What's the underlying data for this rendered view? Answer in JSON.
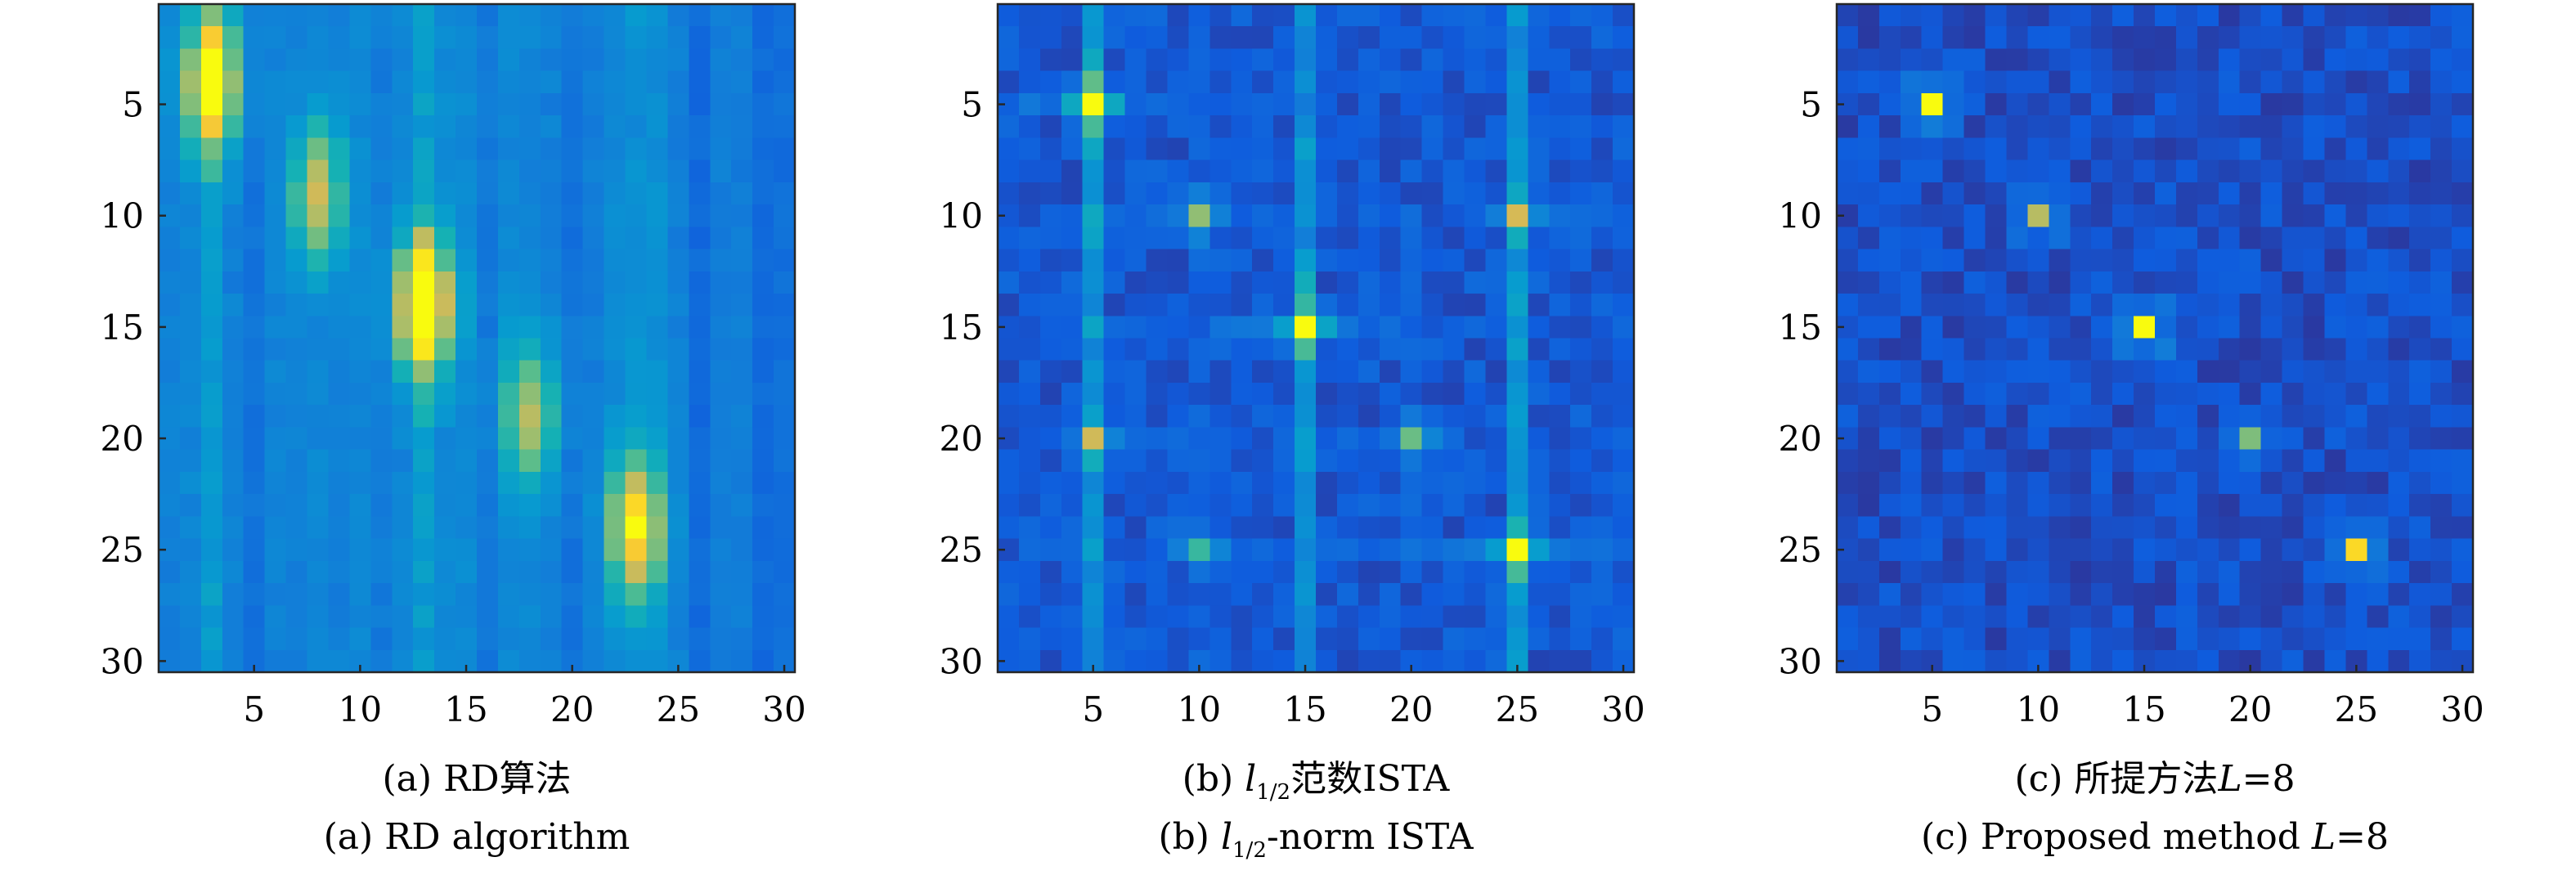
{
  "chart_data": [
    {
      "type": "heatmap",
      "size": 30,
      "colormap": "parula",
      "xlim": [
        0.5,
        30.5
      ],
      "ylim": [
        0.5,
        30.5
      ],
      "x_ticks": [
        5,
        10,
        15,
        20,
        25,
        30
      ],
      "y_ticks": [
        5,
        10,
        15,
        20,
        25,
        30
      ],
      "y_direction": "reverse",
      "caption_cn": {
        "prefix": "(a) RD",
        "rest": "算法",
        "sub": "",
        "italic": ""
      },
      "caption_en": {
        "prefix": "(a) RD algorithm",
        "rest": "",
        "sub": "",
        "italic": ""
      },
      "model": "rd",
      "peaks": [
        {
          "row": 4,
          "col": 3,
          "value": 0.85
        },
        {
          "row": 9,
          "col": 8,
          "value": 0.55
        },
        {
          "row": 14,
          "col": 13,
          "value": 0.95
        },
        {
          "row": 19,
          "col": 18,
          "value": 0.5
        },
        {
          "row": 24,
          "col": 23,
          "value": 0.72
        }
      ]
    },
    {
      "type": "heatmap",
      "size": 30,
      "colormap": "parula",
      "xlim": [
        0.5,
        30.5
      ],
      "ylim": [
        0.5,
        30.5
      ],
      "x_ticks": [
        5,
        10,
        15,
        20,
        25,
        30
      ],
      "y_ticks": [
        5,
        10,
        15,
        20,
        25,
        30
      ],
      "y_direction": "reverse",
      "caption_cn": {
        "prefix": "(b) ",
        "italic": "l",
        "sub": "1/2",
        "rest": "范数ISTA"
      },
      "caption_en": {
        "prefix": "(b) ",
        "italic": "l",
        "sub": "1/2",
        "rest": "-norm ISTA"
      },
      "model": "ista",
      "peaks": [
        {
          "row": 5,
          "col": 5,
          "value": 1.0
        },
        {
          "row": 10,
          "col": 10,
          "value": 0.45
        },
        {
          "row": 10,
          "col": 25,
          "value": 0.42
        },
        {
          "row": 15,
          "col": 15,
          "value": 0.92
        },
        {
          "row": 20,
          "col": 5,
          "value": 0.4
        },
        {
          "row": 20,
          "col": 20,
          "value": 0.38
        },
        {
          "row": 25,
          "col": 10,
          "value": 0.35
        },
        {
          "row": 25,
          "col": 25,
          "value": 0.9
        }
      ]
    },
    {
      "type": "heatmap",
      "size": 30,
      "colormap": "parula",
      "xlim": [
        0.5,
        30.5
      ],
      "ylim": [
        0.5,
        30.5
      ],
      "x_ticks": [
        5,
        10,
        15,
        20,
        25,
        30
      ],
      "y_ticks": [
        5,
        10,
        15,
        20,
        25,
        30
      ],
      "y_direction": "reverse",
      "caption_cn": {
        "prefix": "(c) 所提方法",
        "italic": "L",
        "sub": "",
        "rest": "=8"
      },
      "caption_en": {
        "prefix": "(c) Proposed method ",
        "italic": "L",
        "sub": "",
        "rest": "=8"
      },
      "model": "proposed",
      "peaks": [
        {
          "row": 5,
          "col": 5,
          "value": 1.0
        },
        {
          "row": 10,
          "col": 10,
          "value": 0.72
        },
        {
          "row": 15,
          "col": 15,
          "value": 1.0
        },
        {
          "row": 20,
          "col": 20,
          "value": 0.55
        },
        {
          "row": 25,
          "col": 25,
          "value": 0.88
        }
      ]
    }
  ]
}
